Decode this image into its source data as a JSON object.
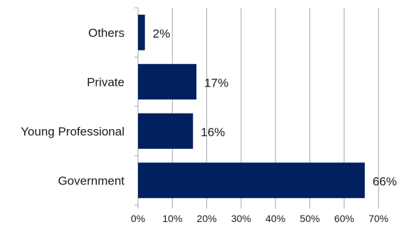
{
  "chart_data": {
    "type": "bar",
    "orientation": "horizontal",
    "categories": [
      "Others",
      "Private",
      "Young Professional",
      "Government"
    ],
    "values": [
      2,
      17,
      16,
      66
    ],
    "data_labels": [
      "2%",
      "17%",
      "16%",
      "66%"
    ],
    "x_ticks": [
      "0%",
      "10%",
      "20%",
      "30%",
      "40%",
      "50%",
      "60%",
      "70%"
    ],
    "xlim": [
      0,
      70
    ],
    "grid": "vertical",
    "legend": "none",
    "bar_color": "#002060",
    "grid_color": "#a6a6a6"
  }
}
